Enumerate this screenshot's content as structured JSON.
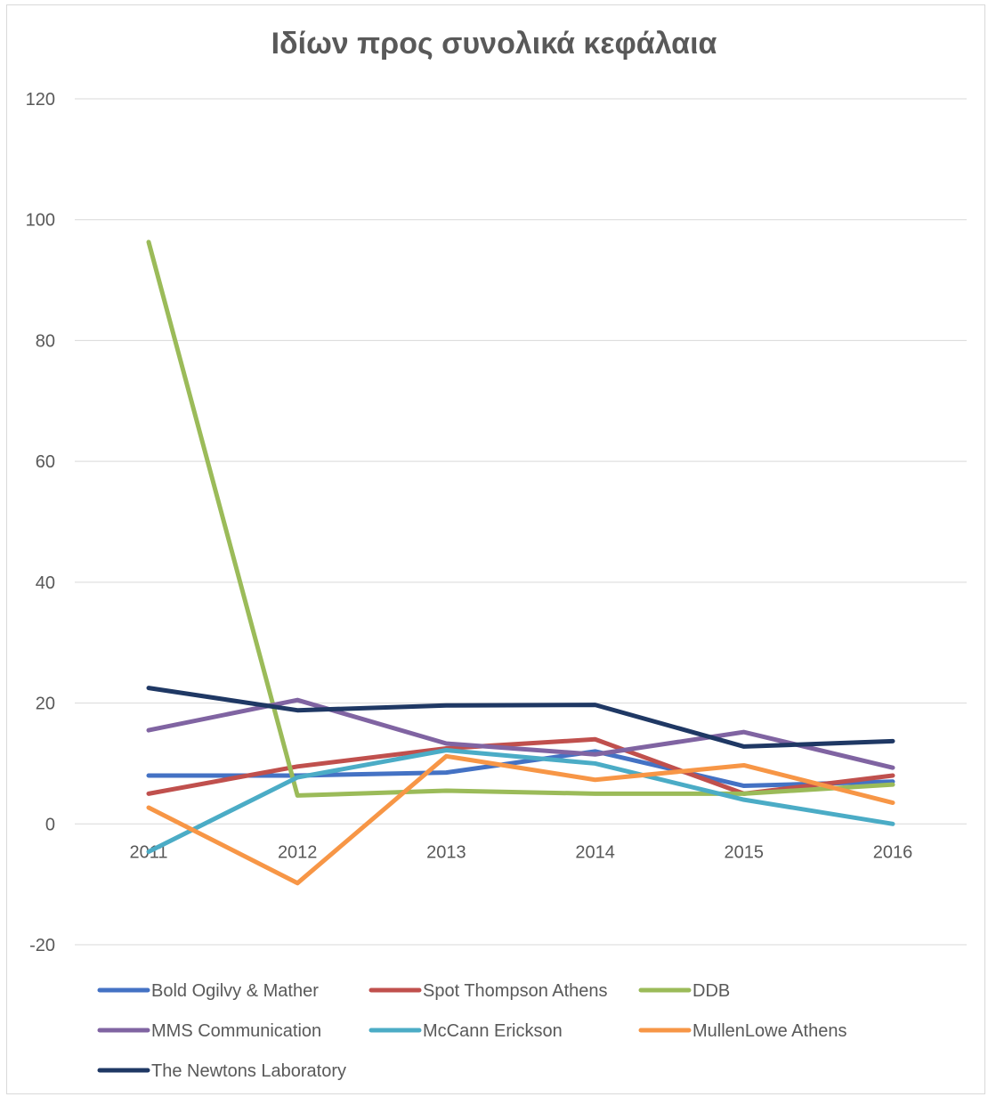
{
  "chart_data": {
    "type": "line",
    "title": "Ιδίων προς συνολικά κεφάλαια",
    "xlabel": "",
    "ylabel": "",
    "categories": [
      "2011",
      "2012",
      "2013",
      "2014",
      "2015",
      "2016"
    ],
    "ylim": [
      -20,
      120
    ],
    "yticks": [
      "-20",
      "0",
      "20",
      "40",
      "60",
      "80",
      "100",
      "120"
    ],
    "grid": true,
    "legend_position": "bottom",
    "series": [
      {
        "name": "Bold Ogilvy & Mather",
        "color": "#4472c4",
        "values": [
          8,
          8,
          8.5,
          12,
          6.3,
          7
        ]
      },
      {
        "name": "Spot Thompson Athens",
        "color": "#c0504d",
        "values": [
          5,
          9.5,
          12.5,
          14,
          5,
          8
        ]
      },
      {
        "name": "DDB",
        "color": "#9bbb59",
        "values": [
          96.3,
          4.7,
          5.5,
          5,
          5,
          6.5
        ]
      },
      {
        "name": "MMS Communication",
        "color": "#8064a2",
        "values": [
          15.5,
          20.5,
          13.3,
          11.5,
          15.2,
          9.3
        ]
      },
      {
        "name": "McCann Erickson",
        "color": "#4bacc6",
        "values": [
          -4.6,
          7.7,
          12.2,
          10,
          4,
          0
        ]
      },
      {
        "name": "MullenLowe Athens",
        "color": "#f79646",
        "values": [
          2.7,
          -9.8,
          11.2,
          7.3,
          9.7,
          3.5
        ]
      },
      {
        "name": "The Newtons Laboratory",
        "color": "#1f3864",
        "values": [
          22.5,
          18.8,
          19.6,
          19.7,
          12.8,
          13.7
        ]
      }
    ]
  }
}
